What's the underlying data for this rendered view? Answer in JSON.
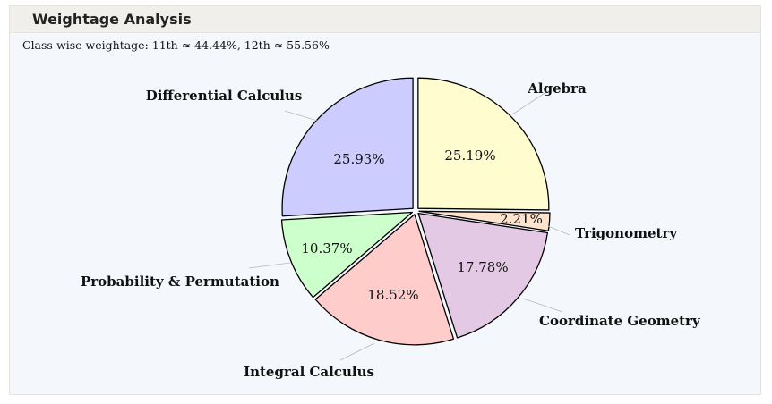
{
  "header": {
    "title": "Weightage Analysis"
  },
  "subtitle": "Class-wise weightage: 11th ≈ 44.44%, 12th ≈ 55.56%",
  "chart_data": {
    "type": "pie",
    "title": "",
    "slices": [
      {
        "name": "Algebra",
        "value": 25.19,
        "label": "25.19%",
        "color": "#fffdd0"
      },
      {
        "name": "Trigonometry",
        "value": 2.21,
        "label": "2.21%",
        "color": "#ffe3cc"
      },
      {
        "name": "Coordinate Geometry",
        "value": 17.78,
        "label": "17.78%",
        "color": "#e4c9e4"
      },
      {
        "name": "Integral Calculus",
        "value": 18.52,
        "label": "18.52%",
        "color": "#ffcccc"
      },
      {
        "name": "Probability & Permutation",
        "value": 10.37,
        "label": "10.37%",
        "color": "#ccffcc"
      },
      {
        "name": "Differential Calculus",
        "value": 25.93,
        "label": "25.93%",
        "color": "#ccccff"
      }
    ],
    "start_angle": "12 o'clock",
    "direction": "clockwise",
    "exploded": true
  }
}
